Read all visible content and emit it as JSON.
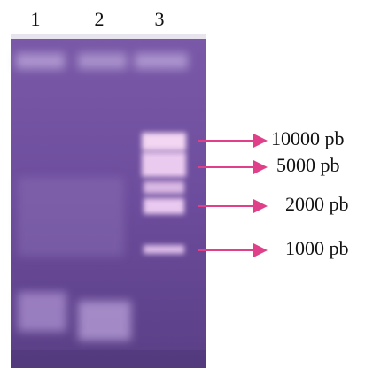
{
  "lanes": [
    "1",
    "2",
    "3"
  ],
  "markers": [
    "10000 pb",
    "5000 pb",
    "2000 pb",
    "1000 pb"
  ]
}
